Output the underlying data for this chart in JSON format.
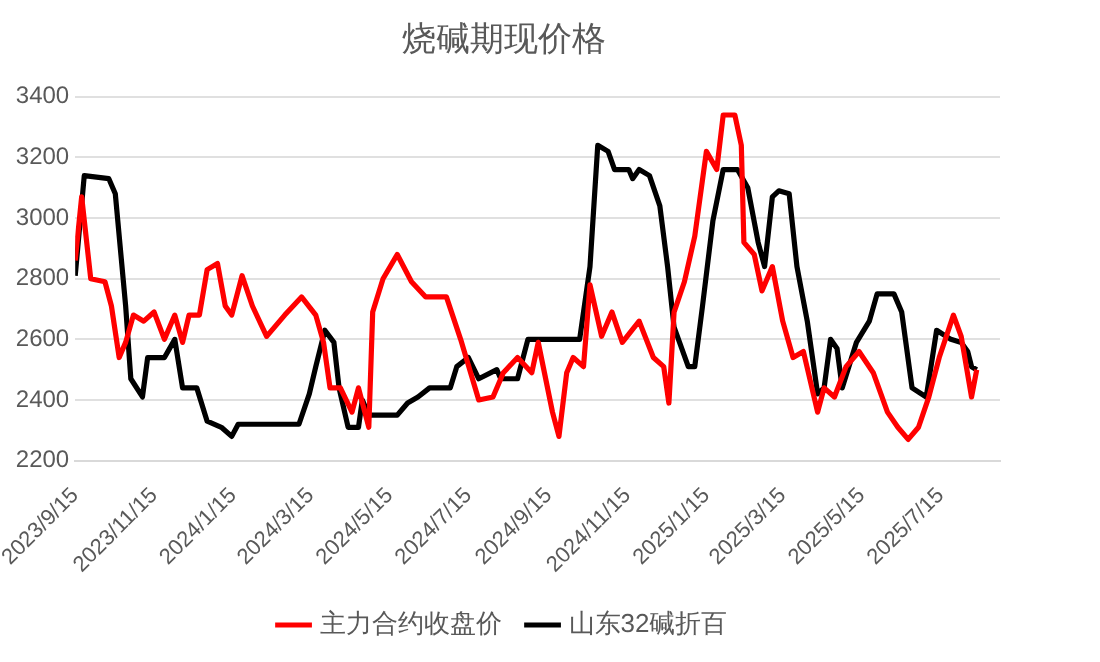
{
  "chart_data": {
    "type": "line",
    "title": "烧碱期现价格",
    "xlim": [
      "2023-09-15",
      "2025-08-30"
    ],
    "xticks": [
      {
        "value": "2023-09-15",
        "label": "2023/9/15"
      },
      {
        "value": "2023-11-15",
        "label": "2023/11/15"
      },
      {
        "value": "2024-01-15",
        "label": "2024/1/15"
      },
      {
        "value": "2024-03-15",
        "label": "2024/3/15"
      },
      {
        "value": "2024-05-15",
        "label": "2024/5/15"
      },
      {
        "value": "2024-07-15",
        "label": "2024/7/15"
      },
      {
        "value": "2024-09-15",
        "label": "2024/9/15"
      },
      {
        "value": "2024-11-15",
        "label": "2024/11/15"
      },
      {
        "value": "2025-01-15",
        "label": "2025/1/15"
      },
      {
        "value": "2025-03-15",
        "label": "2025/3/15"
      },
      {
        "value": "2025-05-15",
        "label": "2025/5/15"
      },
      {
        "value": "2025-07-15",
        "label": "2025/7/15"
      }
    ],
    "ylim": [
      2200,
      3400
    ],
    "yticks": [
      2200,
      2400,
      2600,
      2800,
      3000,
      3200,
      3400
    ],
    "grid": "y",
    "legend": "bottom",
    "marker": "none",
    "line_style": "solid",
    "series": [
      {
        "name": "主力合约收盘价",
        "color": "#ff0000",
        "x": [
          "2023-09-15",
          "2023-09-20",
          "2023-09-27",
          "2023-10-08",
          "2023-10-13",
          "2023-10-19",
          "2023-10-24",
          "2023-10-30",
          "2023-11-07",
          "2023-11-15",
          "2023-11-23",
          "2023-12-01",
          "2023-12-07",
          "2023-12-12",
          "2023-12-20",
          "2023-12-26",
          "2024-01-03",
          "2024-01-09",
          "2024-01-14",
          "2024-01-22",
          "2024-01-30",
          "2024-02-10",
          "2024-02-24",
          "2024-03-08",
          "2024-03-19",
          "2024-03-25",
          "2024-03-30",
          "2024-04-07",
          "2024-04-16",
          "2024-04-21",
          "2024-04-29",
          "2024-05-02",
          "2024-05-10",
          "2024-05-21",
          "2024-06-01",
          "2024-06-12",
          "2024-06-28",
          "2024-07-09",
          "2024-07-23",
          "2024-08-03",
          "2024-08-11",
          "2024-08-22",
          "2024-09-02",
          "2024-09-07",
          "2024-09-18",
          "2024-09-23",
          "2024-09-29",
          "2024-10-04",
          "2024-10-12",
          "2024-10-17",
          "2024-10-26",
          "2024-11-03",
          "2024-11-11",
          "2024-11-24",
          "2024-12-05",
          "2024-12-13",
          "2024-12-17",
          "2024-12-21",
          "2024-12-29",
          "2025-01-06",
          "2025-01-15",
          "2025-01-23",
          "2025-01-28",
          "2025-02-06",
          "2025-02-11",
          "2025-02-13",
          "2025-02-21",
          "2025-02-27",
          "2025-03-07",
          "2025-03-15",
          "2025-03-23",
          "2025-03-31",
          "2025-04-11",
          "2025-04-16",
          "2025-04-24",
          "2025-05-03",
          "2025-05-13",
          "2025-05-24",
          "2025-06-04",
          "2025-06-12",
          "2025-06-20",
          "2025-06-28",
          "2025-07-06",
          "2025-07-14",
          "2025-07-25",
          "2025-07-31",
          "2025-08-08",
          "2025-08-12"
        ],
        "values": [
          2860,
          3070,
          2800,
          2790,
          2710,
          2540,
          2590,
          2680,
          2660,
          2690,
          2600,
          2680,
          2590,
          2680,
          2680,
          2830,
          2850,
          2710,
          2680,
          2810,
          2710,
          2610,
          2680,
          2740,
          2680,
          2590,
          2440,
          2440,
          2360,
          2440,
          2310,
          2690,
          2800,
          2880,
          2790,
          2740,
          2740,
          2600,
          2400,
          2410,
          2490,
          2540,
          2490,
          2590,
          2360,
          2280,
          2490,
          2540,
          2510,
          2780,
          2610,
          2690,
          2590,
          2660,
          2540,
          2510,
          2390,
          2690,
          2790,
          2940,
          3220,
          3160,
          3340,
          3340,
          3240,
          2920,
          2880,
          2760,
          2840,
          2660,
          2540,
          2560,
          2360,
          2440,
          2410,
          2510,
          2560,
          2490,
          2360,
          2310,
          2270,
          2310,
          2410,
          2540,
          2680,
          2610,
          2410,
          2500
        ]
      },
      {
        "name": "山东32碱折百",
        "color": "#000000",
        "x": [
          "2023-09-15",
          "2023-09-22",
          "2023-10-11",
          "2023-10-16",
          "2023-10-24",
          "2023-10-28",
          "2023-11-06",
          "2023-11-10",
          "2023-11-23",
          "2023-12-01",
          "2023-12-07",
          "2023-12-18",
          "2023-12-26",
          "2024-01-06",
          "2024-01-14",
          "2024-01-19",
          "2024-03-06",
          "2024-03-14",
          "2024-03-19",
          "2024-03-26",
          "2024-04-02",
          "2024-04-06",
          "2024-04-13",
          "2024-04-21",
          "2024-04-24",
          "2024-04-29",
          "2024-05-21",
          "2024-05-29",
          "2024-06-06",
          "2024-06-15",
          "2024-07-01",
          "2024-07-06",
          "2024-07-15",
          "2024-07-23",
          "2024-08-06",
          "2024-08-09",
          "2024-08-22",
          "2024-08-30",
          "2024-09-07",
          "2024-10-09",
          "2024-10-17",
          "2024-10-23",
          "2024-10-31",
          "2024-11-05",
          "2024-11-16",
          "2024-11-19",
          "2024-11-24",
          "2024-12-02",
          "2024-12-10",
          "2024-12-16",
          "2024-12-21",
          "2025-01-01",
          "2025-01-06",
          "2025-01-12",
          "2025-01-20",
          "2025-01-28",
          "2025-02-08",
          "2025-02-16",
          "2025-02-24",
          "2025-03-01",
          "2025-03-07",
          "2025-03-12",
          "2025-03-20",
          "2025-03-26",
          "2025-04-03",
          "2025-04-11",
          "2025-04-16",
          "2025-04-21",
          "2025-04-26",
          "2025-04-30",
          "2025-05-11",
          "2025-05-21",
          "2025-05-27",
          "2025-06-09",
          "2025-06-15",
          "2025-06-23",
          "2025-07-04",
          "2025-07-12",
          "2025-07-23",
          "2025-07-31",
          "2025-08-05",
          "2025-08-08",
          "2025-08-12"
        ],
        "values": [
          2810,
          3140,
          3130,
          3080,
          2710,
          2470,
          2410,
          2540,
          2540,
          2600,
          2440,
          2440,
          2330,
          2310,
          2280,
          2320,
          2320,
          2420,
          2510,
          2630,
          2590,
          2440,
          2310,
          2310,
          2400,
          2350,
          2350,
          2390,
          2410,
          2440,
          2440,
          2510,
          2540,
          2470,
          2500,
          2470,
          2470,
          2600,
          2600,
          2600,
          2840,
          3240,
          3220,
          3160,
          3160,
          3130,
          3160,
          3140,
          3040,
          2840,
          2640,
          2510,
          2510,
          2710,
          2990,
          3160,
          3160,
          3100,
          2920,
          2840,
          3070,
          3090,
          3080,
          2840,
          2660,
          2420,
          2440,
          2600,
          2570,
          2440,
          2590,
          2660,
          2750,
          2750,
          2690,
          2440,
          2410,
          2630,
          2600,
          2590,
          2560,
          2510,
          2500
        ]
      }
    ]
  }
}
